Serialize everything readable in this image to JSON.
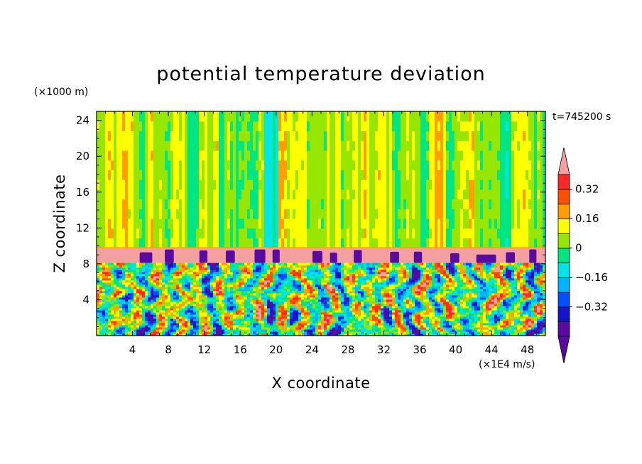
{
  "chart_data": {
    "type": "heatmap",
    "title": "potential temperature deviation",
    "xlabel": "X coordinate",
    "ylabel": "Z coordinate",
    "x_unit": "(×1E4 m/s)",
    "y_unit": "(×1000 m)",
    "time_label": "t=745200 s",
    "xlim": [
      0,
      50
    ],
    "ylim": [
      0,
      25
    ],
    "x_ticks": [
      "4",
      "8",
      "12",
      "16",
      "20",
      "24",
      "28",
      "32",
      "36",
      "40",
      "44",
      "48"
    ],
    "x_tick_values": [
      4,
      8,
      12,
      16,
      20,
      24,
      28,
      32,
      36,
      40,
      44,
      48
    ],
    "y_ticks": [
      "4",
      "8",
      "12",
      "16",
      "20",
      "24"
    ],
    "y_tick_values": [
      4,
      8,
      12,
      16,
      20,
      24
    ],
    "colorbar": {
      "levels": [
        -0.48,
        -0.4,
        -0.32,
        -0.24,
        -0.16,
        -0.08,
        0,
        0.08,
        0.16,
        0.24,
        0.32,
        0.4
      ],
      "colors": [
        "#5a0aa0",
        "#5a0aa0",
        "#1414c8",
        "#0050ff",
        "#00b4ff",
        "#00e6e6",
        "#00e682",
        "#96e600",
        "#ffff00",
        "#ffa000",
        "#ff5000",
        "#ff2828",
        "#f5a0a0"
      ],
      "labels": [
        {
          "text": "0.32",
          "value": 0.32
        },
        {
          "text": "0.16",
          "value": 0.16
        },
        {
          "text": "0",
          "value": 0
        },
        {
          "text": "−0.16",
          "value": -0.16
        },
        {
          "text": "−0.32",
          "value": -0.32
        }
      ]
    },
    "field_structure": {
      "upper_layer_value": 0.04,
      "stable_band_z": [
        8.1,
        9.8
      ],
      "stable_band_value": 0.45,
      "lower_layer_z": [
        0,
        8.1
      ],
      "lower_layer_pattern": "turbulent mixed, values -0.48 to 0.45",
      "pink_band_z": [
        9.8,
        10.0
      ]
    }
  }
}
